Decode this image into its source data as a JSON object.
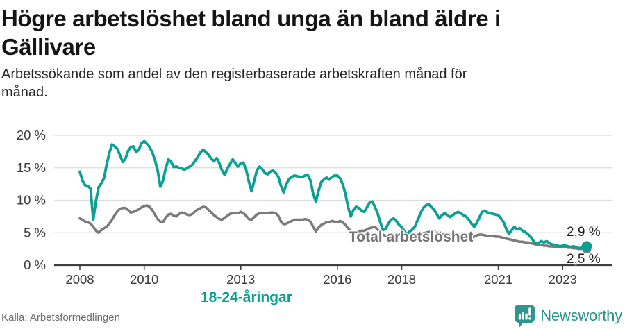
{
  "header": {
    "title": "Högre arbetslöshet bland unga än bland äldre i Gällivare",
    "title_lines": [
      "Högre arbetslöshet bland unga än bland äldre i",
      "Gällivare"
    ],
    "subtitle": "Arbetssökande som andel av den registerbaserade arbetskraften månad för månad.",
    "subtitle_lines": [
      "Arbetssökande som andel av den registerbaserade arbetskraften månad för",
      "månad."
    ]
  },
  "footer": {
    "source": "Källa: Arbetsförmedlingen",
    "brand": "Newsworthy"
  },
  "colors": {
    "young": "#0ba093",
    "total": "#7b7b7b",
    "total_label": "#747474",
    "grid": "#dcdcdc",
    "axis": "#3f3f3f",
    "tick_text": "#3a3a3a",
    "end_label_text": "#1f1f1f",
    "brand_teal": "#2f958f"
  },
  "chart_data": {
    "type": "line",
    "title": "Högre arbetslöshet bland unga än bland äldre i Gällivare",
    "subtitle": "Arbetssökande som andel av den registerbaserade arbetskraften månad för månad.",
    "source": "Källa: Arbetsförmedlingen",
    "frequency": "monthly",
    "x_start": "2008-01",
    "x_end": "2023-10",
    "ylim": [
      0,
      21
    ],
    "grid": true,
    "y_tick_values": [
      0,
      5,
      10,
      15,
      20
    ],
    "y_tick_labels": [
      "0 %",
      "5 %",
      "10 %",
      "15 %",
      "20 %"
    ],
    "x_tick_years": [
      2008,
      2010,
      2013,
      2016,
      2018,
      2021,
      2023
    ],
    "x_tick_labels": [
      "2008",
      "2010",
      "2013",
      "2016",
      "2018",
      "2021",
      "2023"
    ],
    "series": [
      {
        "name": "18-24-åringar",
        "end_label": "2,9 %",
        "end_value": 2.9,
        "values": [
          14.4,
          13.0,
          12.3,
          12.2,
          11.8,
          7.0,
          9.9,
          12.0,
          12.6,
          13.4,
          15.5,
          17.3,
          18.6,
          18.3,
          17.9,
          16.9,
          15.9,
          16.4,
          17.6,
          18.2,
          18.3,
          17.4,
          17.8,
          18.8,
          19.1,
          18.7,
          18.2,
          17.4,
          16.2,
          14.6,
          12.1,
          13.0,
          14.9,
          16.3,
          15.9,
          15.1,
          15.2,
          15.0,
          14.9,
          14.7,
          15.0,
          15.2,
          15.5,
          16.1,
          16.7,
          17.4,
          17.8,
          17.4,
          17.0,
          16.4,
          16.0,
          16.5,
          15.7,
          14.6,
          13.9,
          14.9,
          15.6,
          16.3,
          15.7,
          15.2,
          15.7,
          15.8,
          14.7,
          12.9,
          11.4,
          13.0,
          14.6,
          15.2,
          14.8,
          14.2,
          14.0,
          14.4,
          14.6,
          14.2,
          13.6,
          12.2,
          11.2,
          12.5,
          13.3,
          13.6,
          13.8,
          13.7,
          13.6,
          13.6,
          13.8,
          13.9,
          13.0,
          11.0,
          9.8,
          11.5,
          12.8,
          13.2,
          13.5,
          13.2,
          13.6,
          13.8,
          13.8,
          13.4,
          12.5,
          11.0,
          9.0,
          7.5,
          8.5,
          9.0,
          8.8,
          8.4,
          8.2,
          8.9,
          9.6,
          9.8,
          9.0,
          8.0,
          6.6,
          5.4,
          5.6,
          6.4,
          7.0,
          7.2,
          6.8,
          6.2,
          5.9,
          5.2,
          4.8,
          5.2,
          5.5,
          6.0,
          7.0,
          8.0,
          8.8,
          9.2,
          9.4,
          9.0,
          8.6,
          7.9,
          7.2,
          7.7,
          8.0,
          7.7,
          7.4,
          7.7,
          8.0,
          8.2,
          8.0,
          7.7,
          7.5,
          7.0,
          6.4,
          5.9,
          6.5,
          7.4,
          8.2,
          8.4,
          8.1,
          8.0,
          7.9,
          7.8,
          7.7,
          7.2,
          6.6,
          5.6,
          4.8,
          5.4,
          5.9,
          5.5,
          5.7,
          5.3,
          5.1,
          4.8,
          4.4,
          3.8,
          3.3,
          3.4,
          3.7,
          3.5,
          3.7,
          3.4,
          3.2,
          3.1,
          3.0,
          2.9,
          3.0,
          3.0,
          2.9,
          2.8,
          2.9,
          2.8,
          2.6,
          2.7,
          2.8,
          2.9
        ]
      },
      {
        "name": "Total arbetslöshet",
        "end_label": "2,5 %",
        "end_value": 2.5,
        "values": [
          7.2,
          7.0,
          6.7,
          6.6,
          6.4,
          5.9,
          5.3,
          5.0,
          5.4,
          5.7,
          5.9,
          6.4,
          7.0,
          7.7,
          8.3,
          8.7,
          8.8,
          8.8,
          8.5,
          8.1,
          8.2,
          8.4,
          8.6,
          8.9,
          9.1,
          9.2,
          9.0,
          8.5,
          7.8,
          7.1,
          6.7,
          6.6,
          7.3,
          7.8,
          7.9,
          7.6,
          7.5,
          7.9,
          8.1,
          8.0,
          7.8,
          7.7,
          7.9,
          8.3,
          8.6,
          8.8,
          9.0,
          8.9,
          8.5,
          8.1,
          7.7,
          7.4,
          7.1,
          7.0,
          7.3,
          7.6,
          7.9,
          8.0,
          8.0,
          8.0,
          8.2,
          8.0,
          7.6,
          7.1,
          7.0,
          7.4,
          7.8,
          8.0,
          8.0,
          8.0,
          8.0,
          8.1,
          8.1,
          8.0,
          7.6,
          6.7,
          6.3,
          6.4,
          6.6,
          6.8,
          7.0,
          7.0,
          7.0,
          7.0,
          7.1,
          7.0,
          6.7,
          5.9,
          5.2,
          5.8,
          6.2,
          6.4,
          6.6,
          6.6,
          6.8,
          6.7,
          6.6,
          6.8,
          6.6,
          6.2,
          5.7,
          5.3,
          5.2,
          5.1,
          5.2,
          5.3,
          5.3,
          5.5,
          5.7,
          5.8,
          5.9,
          5.5,
          5.1,
          4.7,
          4.5,
          4.6,
          4.7,
          4.7,
          4.6,
          4.6,
          4.7,
          4.7,
          4.6,
          4.5,
          4.5,
          4.5,
          4.6,
          4.7,
          4.9,
          5.0,
          5.1,
          5.1,
          5.2,
          5.1,
          5.0,
          4.8,
          4.6,
          4.6,
          4.7,
          4.7,
          4.6,
          4.6,
          4.6,
          4.5,
          4.5,
          4.4,
          4.3,
          4.4,
          4.6,
          4.7,
          4.7,
          4.6,
          4.5,
          4.5,
          4.5,
          4.4,
          4.4,
          4.3,
          4.2,
          4.1,
          4.0,
          3.9,
          3.8,
          3.7,
          3.6,
          3.6,
          3.5,
          3.5,
          3.4,
          3.3,
          3.2,
          3.1,
          3.1,
          3.0,
          3.0,
          2.9,
          2.9,
          2.8,
          2.8,
          2.8,
          2.8,
          2.8,
          2.7,
          2.7,
          2.6,
          2.6,
          2.5,
          2.5,
          2.5,
          2.5
        ]
      }
    ]
  }
}
